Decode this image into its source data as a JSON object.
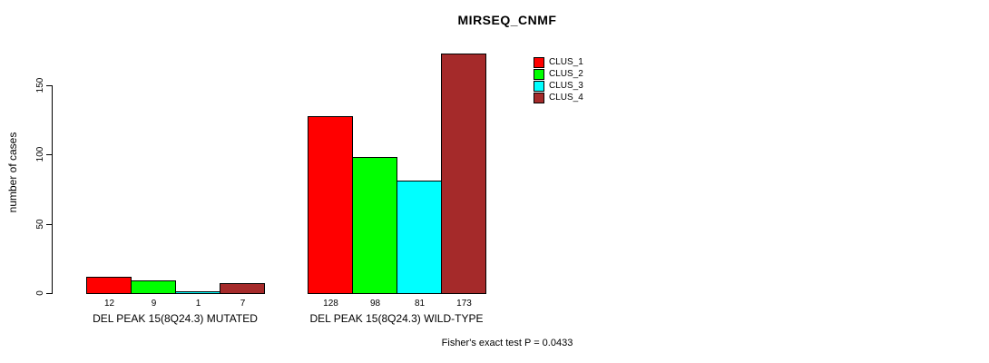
{
  "title": "MIRSEQ_CNMF",
  "annotation": "Fisher's exact test P = 0.0433",
  "chart_data": {
    "type": "bar",
    "title": "MIRSEQ_CNMF",
    "xlabel": "",
    "ylabel": "number of cases",
    "yticks": [
      0,
      50,
      100,
      150
    ],
    "ylim": [
      0,
      175
    ],
    "grid": false,
    "legend_position": "top-right",
    "categories": [
      "DEL PEAK 15(8Q24.3) MUTATED",
      "DEL PEAK 15(8Q24.3) WILD-TYPE"
    ],
    "series": [
      {
        "name": "CLUS_1",
        "color": "#FF0000",
        "values": [
          12,
          128
        ]
      },
      {
        "name": "CLUS_2",
        "color": "#00FF00",
        "values": [
          9,
          98
        ]
      },
      {
        "name": "CLUS_3",
        "color": "#00FFFF",
        "values": [
          1,
          81
        ]
      },
      {
        "name": "CLUS_4",
        "color": "#A52A2A",
        "values": [
          7,
          173
        ]
      }
    ],
    "bar_labels_shown": true,
    "annotation": "Fisher's exact test P = 0.0433"
  }
}
